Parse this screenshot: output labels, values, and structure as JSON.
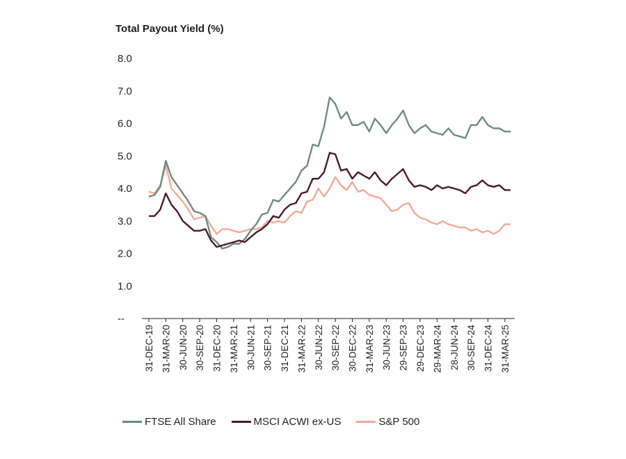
{
  "chart_data": {
    "type": "line",
    "title": "Total Payout Yield (%)",
    "xlabel": "",
    "ylabel": "",
    "ylim": [
      0,
      8
    ],
    "yticks": [
      {
        "value": 0,
        "label": "--"
      },
      {
        "value": 1,
        "label": "1.0"
      },
      {
        "value": 2,
        "label": "2.0"
      },
      {
        "value": 3,
        "label": "3.0"
      },
      {
        "value": 4,
        "label": "4.0"
      },
      {
        "value": 5,
        "label": "5.0"
      },
      {
        "value": 6,
        "label": "6.0"
      },
      {
        "value": 7,
        "label": "7.0"
      },
      {
        "value": 8,
        "label": "8.0"
      }
    ],
    "x_tick_labels": [
      {
        "index": 0,
        "label": "31-DEC-19"
      },
      {
        "index": 3,
        "label": "31-MAR-20"
      },
      {
        "index": 6,
        "label": "30-JUN-20"
      },
      {
        "index": 9,
        "label": "30-SEP-20"
      },
      {
        "index": 12,
        "label": "31-DEC-20"
      },
      {
        "index": 15,
        "label": "31-MAR-21"
      },
      {
        "index": 18,
        "label": "30-JUN-21"
      },
      {
        "index": 21,
        "label": "30-SEP-21"
      },
      {
        "index": 24,
        "label": "31-DEC-21"
      },
      {
        "index": 27,
        "label": "31-MAR-22"
      },
      {
        "index": 30,
        "label": "30-JUN-22"
      },
      {
        "index": 33,
        "label": "30-SEP-22"
      },
      {
        "index": 36,
        "label": "30-DEC-22"
      },
      {
        "index": 39,
        "label": "31-MAR-23"
      },
      {
        "index": 42,
        "label": "30-JUN-23"
      },
      {
        "index": 45,
        "label": "29-SEP-23"
      },
      {
        "index": 48,
        "label": "29-DEC-23"
      },
      {
        "index": 51,
        "label": "29-MAR-24"
      },
      {
        "index": 54,
        "label": "28-JUN-24"
      },
      {
        "index": 57,
        "label": "30-SEP-24"
      },
      {
        "index": 60,
        "label": "31-DEC-24"
      },
      {
        "index": 63,
        "label": "31-MAR-25"
      }
    ],
    "n_points": 65,
    "legend_position": "bottom-left",
    "grid": false,
    "series": [
      {
        "name": "FTSE All Share",
        "color": "#6e8a80",
        "values": [
          3.75,
          3.8,
          4.05,
          4.85,
          4.35,
          4.1,
          3.85,
          3.6,
          3.3,
          3.25,
          3.15,
          2.5,
          2.35,
          2.15,
          2.2,
          2.3,
          2.3,
          2.45,
          2.7,
          2.9,
          3.2,
          3.25,
          3.65,
          3.6,
          3.8,
          4.0,
          4.2,
          4.55,
          4.7,
          5.35,
          5.3,
          5.9,
          6.8,
          6.6,
          6.15,
          6.35,
          5.95,
          5.95,
          6.05,
          5.75,
          6.15,
          5.95,
          5.7,
          5.95,
          6.15,
          6.4,
          5.95,
          5.7,
          5.85,
          5.95,
          5.75,
          5.7,
          5.65,
          5.85,
          5.65,
          5.6,
          5.55,
          5.95,
          5.95,
          6.2,
          5.95,
          5.85,
          5.85,
          5.75,
          5.75
        ]
      },
      {
        "name": "MSCI ACWI ex-US",
        "color": "#4a1a2c",
        "values": [
          3.15,
          3.15,
          3.35,
          3.85,
          3.5,
          3.3,
          3.0,
          2.85,
          2.7,
          2.7,
          2.75,
          2.4,
          2.2,
          2.25,
          2.3,
          2.35,
          2.4,
          2.35,
          2.5,
          2.65,
          2.75,
          2.9,
          3.15,
          3.1,
          3.35,
          3.5,
          3.55,
          3.85,
          3.9,
          4.3,
          4.3,
          4.5,
          5.1,
          5.05,
          4.55,
          4.6,
          4.3,
          4.5,
          4.4,
          4.3,
          4.5,
          4.25,
          4.1,
          4.3,
          4.45,
          4.6,
          4.25,
          4.05,
          4.1,
          4.05,
          3.95,
          4.1,
          4.0,
          4.05,
          4.0,
          3.95,
          3.85,
          4.05,
          4.1,
          4.25,
          4.1,
          4.05,
          4.1,
          3.95,
          3.95
        ]
      },
      {
        "name": "S&P 500",
        "color": "#f4a896",
        "values": [
          3.9,
          3.85,
          4.1,
          4.7,
          4.0,
          3.8,
          3.6,
          3.35,
          3.05,
          3.1,
          3.15,
          2.85,
          2.6,
          2.75,
          2.75,
          2.7,
          2.65,
          2.7,
          2.75,
          2.75,
          2.8,
          3.0,
          2.95,
          3.0,
          2.95,
          3.15,
          3.3,
          3.25,
          3.6,
          3.65,
          4.0,
          3.75,
          4.0,
          4.35,
          4.1,
          3.95,
          4.2,
          3.9,
          3.95,
          3.8,
          3.75,
          3.7,
          3.5,
          3.3,
          3.35,
          3.5,
          3.55,
          3.25,
          3.1,
          3.05,
          2.95,
          2.9,
          3.0,
          2.9,
          2.85,
          2.8,
          2.8,
          2.7,
          2.75,
          2.65,
          2.7,
          2.6,
          2.7,
          2.9,
          2.9
        ]
      }
    ]
  }
}
